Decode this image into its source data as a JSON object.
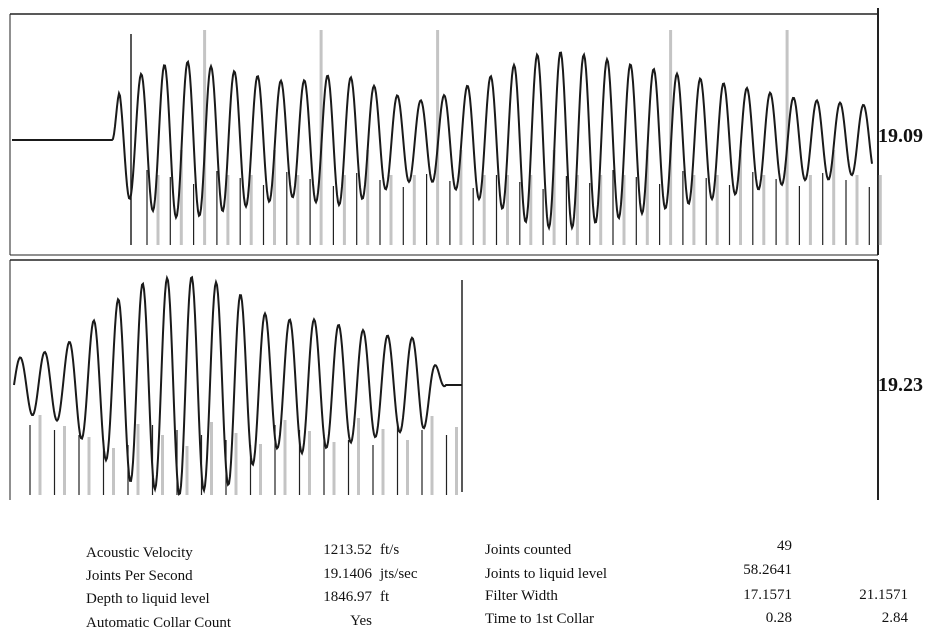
{
  "chart_data": [
    {
      "type": "line",
      "panel": "top",
      "label": "19.09",
      "series": [
        {
          "x": [
            0,
            0.4,
            0.75,
            0.9,
            1.0,
            1.1,
            1.25,
            1.5,
            1.75,
            2,
            2.25,
            2.5,
            2.75,
            3,
            3.25,
            3.5,
            3.75,
            4,
            4.25,
            4.5,
            4.75,
            5,
            5.25,
            5.5,
            5.75,
            6,
            6.25,
            6.5,
            6.75,
            7,
            7.25,
            7.5,
            7.75,
            8,
            8.25,
            8.5,
            8.75,
            9,
            9.25,
            9.5,
            9.75,
            10
          ],
          "y": [
            0,
            0,
            0,
            -0.25,
            0.3,
            -0.5,
            0.6,
            0.75,
            0.85,
            0.9,
            0.85,
            0.8,
            0.75,
            0.7,
            0.65,
            0.7,
            0.75,
            0.7,
            0.6,
            0.5,
            0.45,
            0.5,
            0.6,
            0.7,
            0.8,
            0.95,
            1.0,
            1.0,
            0.95,
            0.9,
            0.85,
            0.8,
            0.75,
            0.7,
            0.65,
            0.6,
            0.55,
            0.5,
            0.45,
            0.45,
            0.4,
            0.4
          ]
        }
      ]
    },
    {
      "type": "line",
      "panel": "bottom",
      "label": "19.23",
      "series": [
        {
          "x": [
            0,
            0.5,
            1,
            1.5,
            2,
            2.5,
            3,
            3.5,
            4,
            4.5,
            5,
            5.5,
            6,
            6.5,
            7,
            7.5,
            8,
            8.5,
            9
          ],
          "y": [
            0.25,
            0.3,
            0.35,
            0.55,
            0.75,
            0.95,
            1.0,
            1.05,
            1.0,
            0.95,
            0.75,
            0.6,
            0.65,
            0.6,
            0.55,
            0.5,
            0.45,
            0.45,
            0
          ]
        }
      ]
    }
  ],
  "stats": [
    {
      "label": "Acoustic Velocity",
      "value": "1213.52",
      "unit": "ft/s",
      "label2": "Joints counted",
      "value2": "49",
      "value3": ""
    },
    {
      "label": "Joints Per Second",
      "value": "19.1406",
      "unit": "jts/sec",
      "label2": "Joints to liquid level",
      "value2": "58.2641",
      "value3": ""
    },
    {
      "label": "Depth to liquid level",
      "value": "1846.97",
      "unit": "ft",
      "label2": "Filter Width",
      "value2": "17.1571",
      "value3": "21.1571"
    },
    {
      "label": "Automatic Collar Count",
      "value": "Yes",
      "unit": "",
      "label2": "Time to 1st Collar",
      "value2": "0.28",
      "value3": "2.84"
    }
  ]
}
